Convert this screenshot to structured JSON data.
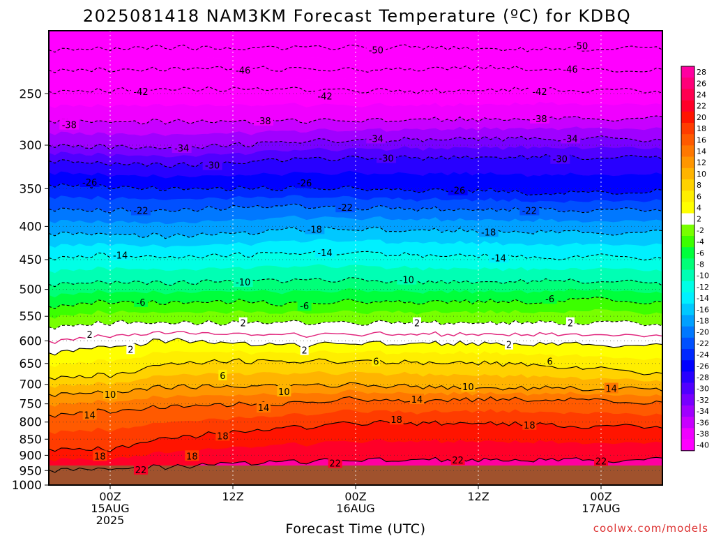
{
  "chart_data": {
    "type": "heatmap",
    "title": "2025081418 NAM3KM Forecast Temperature (ºC) for KDBQ",
    "xlabel": "Forecast Time (UTC)",
    "ylabel": "",
    "x_ticks": [
      {
        "hour": 6,
        "lines": [
          "00Z",
          "15AUG",
          "2025"
        ]
      },
      {
        "hour": 18,
        "lines": [
          "12Z"
        ]
      },
      {
        "hour": 30,
        "lines": [
          "00Z",
          "16AUG"
        ]
      },
      {
        "hour": 42,
        "lines": [
          "12Z"
        ]
      },
      {
        "hour": 54,
        "lines": [
          "00Z",
          "17AUG"
        ]
      }
    ],
    "x_range_hours": [
      0,
      60
    ],
    "y_axis": {
      "unit": "hPa",
      "scale": "log",
      "inverted": true,
      "range": [
        1000,
        200
      ],
      "ticks": [
        250,
        300,
        350,
        400,
        450,
        500,
        550,
        600,
        650,
        700,
        750,
        800,
        850,
        900,
        950,
        1000
      ]
    },
    "colorbar": {
      "labels": [
        "28",
        "26",
        "24",
        "22",
        "20",
        "18",
        "16",
        "14",
        "12",
        "10",
        "8",
        "6",
        "4",
        "2",
        "-2",
        "-4",
        "-6",
        "-8",
        "-10",
        "-12",
        "-14",
        "-16",
        "-18",
        "-20",
        "-22",
        "-24",
        "-26",
        "-28",
        "-30",
        "-32",
        "-34",
        "-36",
        "-38",
        "-40"
      ],
      "colors": [
        "#ff00a0",
        "#ff0078",
        "#ff0050",
        "#ff0028",
        "#ff1400",
        "#ff3c00",
        "#ff5a00",
        "#ff7800",
        "#ff9600",
        "#ffb400",
        "#ffd200",
        "#ffee00",
        "#ffff00",
        "#ffffff",
        "#78ff00",
        "#3cff00",
        "#00ff3c",
        "#00ff78",
        "#00ffb4",
        "#00ffe6",
        "#00f0ff",
        "#00c8ff",
        "#00a0ff",
        "#0078ff",
        "#0050ff",
        "#0028ff",
        "#0000ff",
        "#2800ff",
        "#5000ff",
        "#7800ff",
        "#a000ff",
        "#c800ff",
        "#f000ff",
        "#ff00ff"
      ]
    },
    "series": [
      {
        "temp": -50,
        "p": [
          214,
          213,
          212,
          213,
          212,
          212,
          212,
          213,
          214,
          213,
          213
        ]
      },
      {
        "temp": -46,
        "p": [
          230,
          230,
          229,
          228,
          229,
          230,
          229,
          228,
          229,
          230,
          230
        ]
      },
      {
        "temp": -42,
        "p": [
          248,
          247,
          246,
          246,
          246,
          247,
          248,
          247,
          246,
          247,
          248
        ]
      },
      {
        "temp": -38,
        "p": [
          275,
          276,
          276,
          276,
          275,
          275,
          274,
          274,
          273,
          273,
          273
        ]
      },
      {
        "temp": -34,
        "p": [
          300,
          302,
          303,
          300,
          296,
          295,
          294,
          293,
          293,
          293,
          294
        ]
      },
      {
        "temp": -30,
        "p": [
          317,
          320,
          322,
          319,
          315,
          314,
          314,
          313,
          313,
          313,
          314
        ]
      },
      {
        "temp": -26,
        "p": [
          345,
          348,
          350,
          350,
          349,
          350,
          352,
          352,
          356,
          355,
          353
        ]
      },
      {
        "temp": -22,
        "p": [
          376,
          378,
          378,
          374,
          372,
          374,
          376,
          377,
          377,
          378,
          377
        ]
      },
      {
        "temp": -18,
        "p": [
          410,
          411,
          414,
          410,
          404,
          404,
          406,
          406,
          408,
          409,
          409
        ]
      },
      {
        "temp": -14,
        "p": [
          447,
          443,
          446,
          443,
          439,
          439,
          443,
          444,
          447,
          445,
          447
        ]
      },
      {
        "temp": -10,
        "p": [
          491,
          487,
          489,
          485,
          484,
          483,
          487,
          487,
          486,
          485,
          491
        ]
      },
      {
        "temp": -6,
        "p": [
          531,
          523,
          524,
          522,
          526,
          522,
          523,
          522,
          523,
          517,
          525
        ]
      },
      {
        "temp": -2,
        "p": [
          571,
          563,
          563,
          563,
          562,
          563,
          563,
          563,
          563,
          562,
          566
        ]
      },
      {
        "temp": 2,
        "p": [
          626,
          612,
          599,
          605,
          609,
          605,
          606,
          606,
          607,
          608,
          612
        ]
      },
      {
        "temp": 6,
        "p": [
          683,
          678,
          650,
          645,
          645,
          645,
          648,
          649,
          654,
          664,
          672
        ]
      },
      {
        "temp": 10,
        "p": [
          725,
          720,
          706,
          705,
          703,
          701,
          706,
          709,
          710,
          710,
          714
        ]
      },
      {
        "temp": 14,
        "p": [
          780,
          770,
          757,
          752,
          748,
          738,
          744,
          738,
          739,
          741,
          748
        ]
      },
      {
        "temp": 18,
        "p": [
          880,
          880,
          845,
          830,
          815,
          802,
          803,
          803,
          808,
          813,
          813
        ]
      },
      {
        "temp": 22,
        "p": [
          948,
          944,
          938,
          925,
          920,
          915,
          915,
          915,
          915,
          915,
          915
        ]
      }
    ],
    "contour_labels": [
      {
        "text": "50",
        "time": 32,
        "p": 214
      },
      {
        "text": "50",
        "time": 52,
        "p": 211
      },
      {
        "text": "46",
        "time": 19,
        "p": 230
      },
      {
        "text": "46",
        "time": 51,
        "p": 229
      },
      {
        "text": "42",
        "time": 9,
        "p": 248
      },
      {
        "text": "42",
        "time": 27,
        "p": 252
      },
      {
        "text": "42",
        "time": 48,
        "p": 248
      },
      {
        "text": "38",
        "time": 2,
        "p": 279
      },
      {
        "text": "38",
        "time": 21,
        "p": 275
      },
      {
        "text": "38",
        "time": 48,
        "p": 273
      },
      {
        "text": "34",
        "time": 13,
        "p": 303
      },
      {
        "text": "34",
        "time": 32,
        "p": 293
      },
      {
        "text": "34",
        "time": 51,
        "p": 293
      },
      {
        "text": "30",
        "time": 16,
        "p": 322
      },
      {
        "text": "30",
        "time": 33,
        "p": 314
      },
      {
        "text": "30",
        "time": 50,
        "p": 315
      },
      {
        "text": "26",
        "time": 4,
        "p": 342
      },
      {
        "text": "26",
        "time": 25,
        "p": 343
      },
      {
        "text": "26",
        "time": 40,
        "p": 352
      },
      {
        "text": "22",
        "time": 9,
        "p": 378
      },
      {
        "text": "22",
        "time": 29,
        "p": 374
      },
      {
        "text": "22",
        "time": 47,
        "p": 378
      },
      {
        "text": "18",
        "time": 26,
        "p": 404
      },
      {
        "text": "18",
        "time": 43,
        "p": 408
      },
      {
        "text": "14",
        "time": 7,
        "p": 443
      },
      {
        "text": "14",
        "time": 27,
        "p": 439
      },
      {
        "text": "14",
        "time": 44,
        "p": 447
      },
      {
        "text": "10",
        "time": 19,
        "p": 487
      },
      {
        "text": "10",
        "time": 35,
        "p": 483
      },
      {
        "text": "6",
        "time": 9,
        "p": 523
      },
      {
        "text": "6",
        "time": 25,
        "p": 530
      },
      {
        "text": "6",
        "time": 49,
        "p": 517
      },
      {
        "text": "2",
        "time": 19,
        "p": 563
      },
      {
        "text": "2",
        "time": 36,
        "p": 563
      },
      {
        "text": "2",
        "time": 51,
        "p": 563
      },
      {
        "text": "2",
        "time": 4,
        "p": 586
      },
      {
        "text": "2",
        "time": 8,
        "p": 618
      },
      {
        "text": "2",
        "time": 25,
        "p": 620
      },
      {
        "text": "2",
        "time": 45,
        "p": 608
      },
      {
        "text": "6",
        "time": 17,
        "p": 678
      },
      {
        "text": "6",
        "time": 32,
        "p": 645
      },
      {
        "text": "6",
        "time": 49,
        "p": 645
      },
      {
        "text": "10",
        "time": 6,
        "p": 725
      },
      {
        "text": "10",
        "time": 23,
        "p": 718
      },
      {
        "text": "10",
        "time": 41,
        "p": 706
      },
      {
        "text": "14",
        "time": 4,
        "p": 780
      },
      {
        "text": "14",
        "time": 21,
        "p": 760
      },
      {
        "text": "14",
        "time": 36,
        "p": 738
      },
      {
        "text": "14",
        "time": 55,
        "p": 710
      },
      {
        "text": "18",
        "time": 17,
        "p": 840
      },
      {
        "text": "18",
        "time": 34,
        "p": 793
      },
      {
        "text": "18",
        "time": 47,
        "p": 808
      },
      {
        "text": "18",
        "time": 5,
        "p": 902
      },
      {
        "text": "18",
        "time": 14,
        "p": 902
      },
      {
        "text": "22",
        "time": 9,
        "p": 947
      },
      {
        "text": "22",
        "time": 28,
        "p": 925
      },
      {
        "text": "22",
        "time": 40,
        "p": 915
      },
      {
        "text": "22",
        "time": 54,
        "p": 918
      }
    ],
    "grid": true
  },
  "credit": "coolwx.com/models"
}
